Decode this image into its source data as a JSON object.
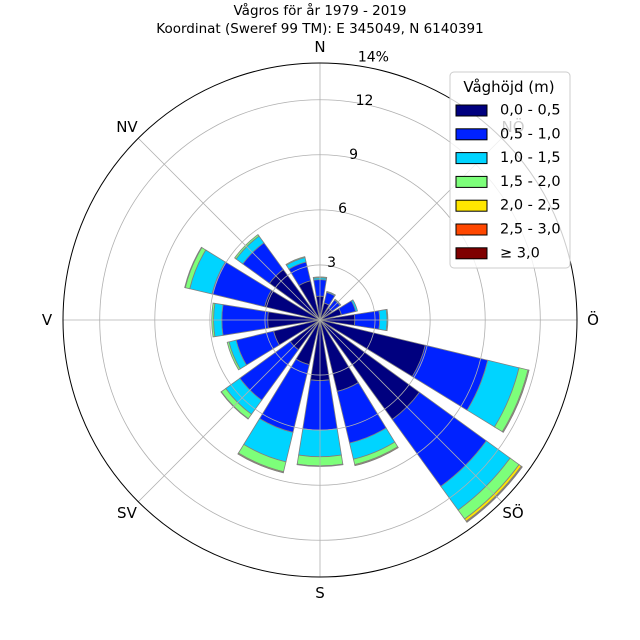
{
  "chart_data": {
    "type": "bar",
    "polar": true,
    "stacked": true,
    "title": "Vågros för år 1979 - 2019",
    "subtitle": "Koordinat (Sweref 99 TM): E 345049, N 6140391",
    "direction_deg": [
      0,
      22.5,
      45,
      67.5,
      90,
      112.5,
      135,
      157.5,
      180,
      202.5,
      225,
      247.5,
      270,
      292.5,
      315,
      337.5
    ],
    "angular_ticks": [
      {
        "deg": 0,
        "label": "N"
      },
      {
        "deg": 45,
        "label": "NÖ"
      },
      {
        "deg": 90,
        "label": "Ö"
      },
      {
        "deg": 135,
        "label": "SÖ"
      },
      {
        "deg": 180,
        "label": "S"
      },
      {
        "deg": 225,
        "label": "SV"
      },
      {
        "deg": 270,
        "label": "V"
      },
      {
        "deg": 315,
        "label": "NV"
      }
    ],
    "radial_ticks": [
      {
        "value": 3,
        "label": "3"
      },
      {
        "value": 6,
        "label": "6"
      },
      {
        "value": 9,
        "label": "9"
      },
      {
        "value": 12,
        "label": "12"
      },
      {
        "value": 14,
        "label": "14%"
      }
    ],
    "rlim": [
      0,
      14
    ],
    "grid": true,
    "legend": {
      "title": "Våghöjd (m)",
      "placement": "top-right"
    },
    "series": [
      {
        "name": "0,0 - 0,5",
        "color": "#00007f",
        "values": [
          1.3,
          0.95,
          0.8,
          1.2,
          1.9,
          5.9,
          6.7,
          4.0,
          3.3,
          2.5,
          2.0,
          2.6,
          2.85,
          3.1,
          3.4,
          2.2
        ]
      },
      {
        "name": "0,5 - 1,0",
        "color": "#0022ff",
        "values": [
          0.9,
          0.6,
          0.55,
          0.8,
          1.35,
          3.5,
          4.5,
          2.9,
          2.7,
          3.8,
          3.4,
          2.1,
          2.5,
          2.95,
          1.8,
          1.05
        ]
      },
      {
        "name": "1,0 - 1,5",
        "color": "#00d4ff",
        "values": [
          0.1,
          0.05,
          0.05,
          0.1,
          0.4,
          1.75,
          1.6,
          0.9,
          1.45,
          1.65,
          0.95,
          0.4,
          0.45,
          1.25,
          0.45,
          0.25
        ]
      },
      {
        "name": "1,5 - 2,0",
        "color": "#7dff7a",
        "values": [
          0.05,
          0,
          0,
          0,
          0.05,
          0.5,
          0.6,
          0.3,
          0.5,
          0.55,
          0.3,
          0.1,
          0.1,
          0.25,
          0.1,
          0.05
        ]
      },
      {
        "name": "2,0 - 2,5",
        "color": "#ffe600",
        "values": [
          0,
          0,
          0,
          0,
          0,
          0.05,
          0.15,
          0.05,
          0.03,
          0.05,
          0.02,
          0,
          0,
          0.03,
          0,
          0
        ]
      },
      {
        "name": "2,5 - 3,0",
        "color": "#ff4700",
        "values": [
          0,
          0,
          0,
          0,
          0,
          0.01,
          0.05,
          0.01,
          0,
          0.01,
          0,
          0,
          0,
          0,
          0,
          0
        ]
      },
      {
        "name": "≥ 3,0",
        "color": "#7f0000",
        "values": [
          0,
          0,
          0,
          0,
          0,
          0,
          0.02,
          0,
          0,
          0,
          0,
          0,
          0,
          0,
          0,
          0
        ]
      }
    ]
  }
}
